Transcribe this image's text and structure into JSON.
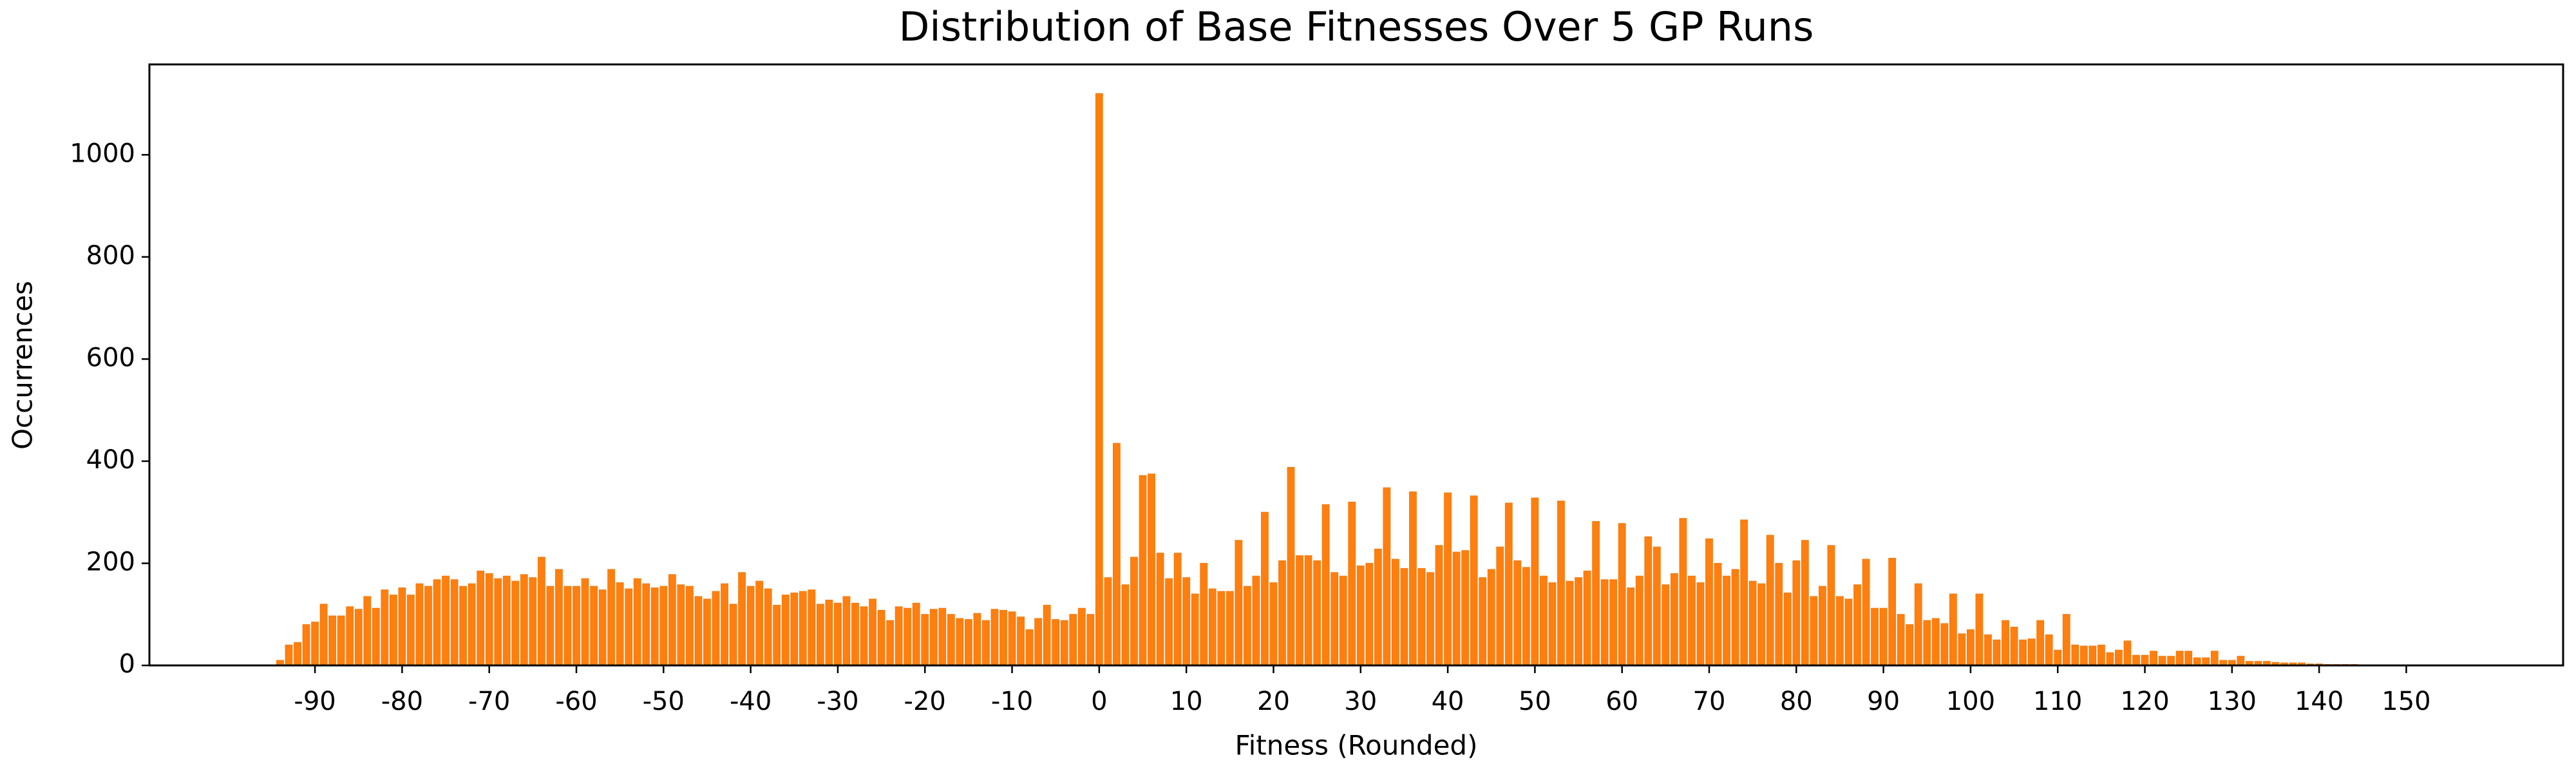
{
  "chart_data": {
    "type": "bar",
    "title": "Distribution of Base Fitnesses Over 5 GP Runs",
    "x_label": "Fitness (Rounded)",
    "y_label": "Occurrences",
    "color": "#ff7f0e",
    "x": [
      -94,
      -93,
      -92,
      -91,
      -90,
      -89,
      -88,
      -87,
      -86,
      -85,
      -84,
      -83,
      -82,
      -81,
      -80,
      -79,
      -78,
      -77,
      -76,
      -75,
      -74,
      -73,
      -72,
      -71,
      -70,
      -69,
      -68,
      -67,
      -66,
      -65,
      -64,
      -63,
      -62,
      -61,
      -60,
      -59,
      -58,
      -57,
      -56,
      -55,
      -54,
      -53,
      -52,
      -51,
      -50,
      -49,
      -48,
      -47,
      -46,
      -45,
      -44,
      -43,
      -42,
      -41,
      -40,
      -39,
      -38,
      -37,
      -36,
      -35,
      -34,
      -33,
      -32,
      -31,
      -30,
      -29,
      -28,
      -27,
      -26,
      -25,
      -24,
      -23,
      -22,
      -21,
      -20,
      -19,
      -18,
      -17,
      -16,
      -15,
      -14,
      -13,
      -12,
      -11,
      -10,
      -9,
      -8,
      -7,
      -6,
      -5,
      -4,
      -3,
      -2,
      -1,
      0,
      1,
      2,
      3,
      4,
      5,
      6,
      7,
      8,
      9,
      10,
      11,
      12,
      13,
      14,
      15,
      16,
      17,
      18,
      19,
      20,
      21,
      22,
      23,
      24,
      25,
      26,
      27,
      28,
      29,
      30,
      31,
      32,
      33,
      34,
      35,
      36,
      37,
      38,
      39,
      40,
      41,
      42,
      43,
      44,
      45,
      46,
      47,
      48,
      49,
      50,
      51,
      52,
      53,
      54,
      55,
      56,
      57,
      58,
      59,
      60,
      61,
      62,
      63,
      64,
      65,
      66,
      67,
      68,
      69,
      70,
      71,
      72,
      73,
      74,
      75,
      76,
      77,
      78,
      79,
      80,
      81,
      82,
      83,
      84,
      85,
      86,
      87,
      88,
      89,
      90,
      91,
      92,
      93,
      94,
      95,
      96,
      97,
      98,
      99,
      100,
      101,
      102,
      103,
      104,
      105,
      106,
      107,
      108,
      109,
      110,
      111,
      112,
      113,
      114,
      115,
      116,
      117,
      118,
      119,
      120,
      121,
      122,
      123,
      124,
      125,
      126,
      127,
      128,
      129,
      130,
      131,
      132,
      133,
      134,
      135,
      136,
      137,
      138,
      139,
      140,
      141,
      142,
      143,
      144,
      145,
      146,
      147,
      148,
      149,
      150
    ],
    "values": [
      10,
      40,
      45,
      80,
      85,
      120,
      97,
      97,
      115,
      110,
      135,
      112,
      148,
      138,
      152,
      138,
      160,
      155,
      168,
      175,
      168,
      155,
      160,
      185,
      180,
      170,
      175,
      165,
      178,
      172,
      212,
      155,
      188,
      155,
      155,
      170,
      155,
      148,
      188,
      162,
      150,
      170,
      160,
      152,
      155,
      178,
      158,
      155,
      135,
      130,
      145,
      160,
      120,
      182,
      155,
      165,
      150,
      118,
      138,
      142,
      145,
      148,
      120,
      128,
      122,
      135,
      122,
      115,
      130,
      108,
      88,
      115,
      112,
      122,
      100,
      110,
      112,
      100,
      92,
      90,
      102,
      88,
      110,
      108,
      105,
      95,
      70,
      92,
      118,
      90,
      88,
      100,
      112,
      100,
      1120,
      172,
      435,
      158,
      212,
      372,
      375,
      220,
      170,
      220,
      172,
      140,
      200,
      150,
      145,
      145,
      245,
      155,
      175,
      300,
      162,
      205,
      388,
      215,
      215,
      205,
      315,
      182,
      175,
      320,
      195,
      200,
      228,
      348,
      208,
      190,
      340,
      190,
      182,
      235,
      338,
      222,
      225,
      332,
      172,
      188,
      232,
      318,
      205,
      192,
      328,
      175,
      162,
      322,
      165,
      172,
      185,
      282,
      168,
      168,
      278,
      152,
      175,
      252,
      232,
      158,
      180,
      288,
      175,
      162,
      248,
      200,
      175,
      188,
      285,
      165,
      160,
      255,
      200,
      142,
      205,
      245,
      135,
      155,
      235,
      135,
      130,
      158,
      208,
      112,
      112,
      210,
      100,
      80,
      160,
      88,
      92,
      82,
      140,
      62,
      70,
      140,
      60,
      50,
      88,
      75,
      50,
      52,
      88,
      60,
      30,
      100,
      40,
      38,
      38,
      40,
      25,
      30,
      48,
      20,
      20,
      28,
      18,
      18,
      28,
      28,
      15,
      15,
      28,
      10,
      10,
      18,
      8,
      8,
      8,
      6,
      5,
      5,
      5,
      3,
      3,
      2,
      2,
      2,
      2,
      1,
      1,
      1,
      1,
      1,
      1
    ],
    "xlim": [
      -109,
      168
    ],
    "xticks": [
      -90,
      -80,
      -70,
      -60,
      -50,
      -40,
      -30,
      -20,
      -10,
      0,
      10,
      20,
      30,
      40,
      50,
      60,
      70,
      80,
      90,
      100,
      110,
      120,
      130,
      140,
      150
    ],
    "ylim": [
      0,
      1177
    ],
    "yticks": [
      0,
      200,
      400,
      600,
      800,
      1000
    ]
  }
}
